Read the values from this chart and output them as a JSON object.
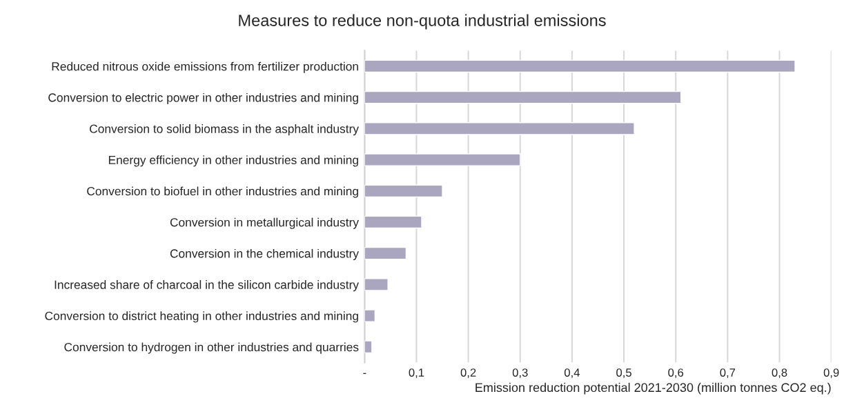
{
  "chart_data": {
    "type": "bar",
    "orientation": "horizontal",
    "title": "Measures to reduce non-quota industrial emissions",
    "xlabel": "Emission reduction potential 2021-2030 (million tonnes CO2 eq.)",
    "categories": [
      "Reduced nitrous oxide emissions from fertilizer production",
      "Conversion to electric power in other industries and mining",
      "Conversion to solid biomass in the asphalt industry",
      "Energy efficiency in other industries and mining",
      "Conversion to biofuel in other industries and mining",
      "Conversion in metallurgical industry",
      "Conversion in the chemical industry",
      "Increased share of charcoal in the silicon carbide industry",
      "Conversion to district heating in other industries and mining",
      "Conversion to hydrogen in other industries and quarries"
    ],
    "values": [
      0.83,
      0.61,
      0.52,
      0.3,
      0.15,
      0.11,
      0.08,
      0.045,
      0.02,
      0.014
    ],
    "color": "#aba6bf",
    "xlim": [
      0,
      0.9
    ],
    "xticks": [
      {
        "value": 0,
        "label": "-"
      },
      {
        "value": 0.1,
        "label": "0,1"
      },
      {
        "value": 0.2,
        "label": "0,2"
      },
      {
        "value": 0.3,
        "label": "0,3"
      },
      {
        "value": 0.4,
        "label": "0,4"
      },
      {
        "value": 0.5,
        "label": "0,5"
      },
      {
        "value": 0.6,
        "label": "0,6"
      },
      {
        "value": 0.7,
        "label": "0,7"
      },
      {
        "value": 0.8,
        "label": "0,8"
      },
      {
        "value": 0.9,
        "label": "0,9"
      }
    ],
    "grid": "x",
    "legend": false
  }
}
